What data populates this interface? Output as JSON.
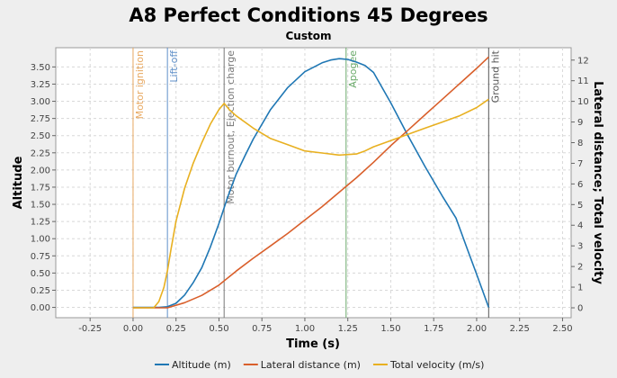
{
  "chart_data": {
    "type": "line",
    "title": "A8 Perfect Conditions 45 Degrees",
    "subtitle": "Custom",
    "xlabel": "Time (s)",
    "ylabel": "Altitude",
    "y2label": "Lateral distance; Total velocity",
    "xlim": [
      -0.45,
      2.55
    ],
    "ylim": [
      -0.15,
      3.78
    ],
    "y2lim": [
      -0.48,
      12.6
    ],
    "xticks": [
      "-0.25",
      "0.00",
      "0.25",
      "0.50",
      "0.75",
      "1.00",
      "1.25",
      "1.50",
      "1.75",
      "2.00",
      "2.25",
      "2.50"
    ],
    "yticks": [
      "0.00",
      "0.25",
      "0.50",
      "0.75",
      "1.00",
      "1.25",
      "1.50",
      "1.75",
      "2.00",
      "2.25",
      "2.50",
      "2.75",
      "3.00",
      "3.25",
      "3.50"
    ],
    "y2ticks": [
      "0",
      "1",
      "2",
      "3",
      "4",
      "5",
      "6",
      "7",
      "8",
      "9",
      "10",
      "11",
      "12"
    ],
    "grid": true,
    "legend_position": "bottom",
    "events": [
      {
        "label": "Motor ignition",
        "x": 0.0,
        "color": "#e8a860"
      },
      {
        "label": "Lift-off",
        "x": 0.2,
        "color": "#5f8fc8"
      },
      {
        "label": "Motor burnout, Ejection charge",
        "x": 0.53,
        "color": "#777777"
      },
      {
        "label": "Apogee",
        "x": 1.24,
        "color": "#6aaa6a"
      },
      {
        "label": "Ground hit",
        "x": 2.07,
        "color": "#555555"
      }
    ],
    "series": [
      {
        "name": "Altitude (m)",
        "axis": "left",
        "color": "#1f77b4",
        "x": [
          0,
          0.15,
          0.2,
          0.25,
          0.3,
          0.35,
          0.4,
          0.45,
          0.5,
          0.53,
          0.55,
          0.6,
          0.65,
          0.7,
          0.8,
          0.9,
          1.0,
          1.1,
          1.15,
          1.2,
          1.25,
          1.3,
          1.35,
          1.4,
          1.5,
          1.6,
          1.7,
          1.8,
          1.88,
          1.95,
          2.0,
          2.07
        ],
        "y": [
          0,
          0,
          0.01,
          0.06,
          0.18,
          0.36,
          0.58,
          0.88,
          1.22,
          1.45,
          1.6,
          1.94,
          2.2,
          2.45,
          2.88,
          3.2,
          3.43,
          3.56,
          3.6,
          3.62,
          3.61,
          3.57,
          3.52,
          3.42,
          2.98,
          2.5,
          2.05,
          1.62,
          1.3,
          0.82,
          0.48,
          0.0
        ]
      },
      {
        "name": "Lateral distance (m)",
        "axis": "right",
        "color": "#d95f2b",
        "x": [
          0,
          0.2,
          0.3,
          0.4,
          0.5,
          0.6,
          0.7,
          0.8,
          0.9,
          1.0,
          1.1,
          1.2,
          1.3,
          1.4,
          1.5,
          1.6,
          1.7,
          1.8,
          1.9,
          2.0,
          2.07
        ],
        "y": [
          0,
          0,
          0.25,
          0.6,
          1.1,
          1.78,
          2.4,
          3.0,
          3.6,
          4.25,
          4.9,
          5.6,
          6.3,
          7.05,
          7.85,
          8.6,
          9.35,
          10.1,
          10.85,
          11.6,
          12.15
        ]
      },
      {
        "name": "Total velocity (m/s)",
        "axis": "right",
        "color": "#e8b020",
        "x": [
          0,
          0.12,
          0.15,
          0.18,
          0.2,
          0.22,
          0.25,
          0.3,
          0.35,
          0.4,
          0.45,
          0.5,
          0.53,
          0.56,
          0.6,
          0.7,
          0.8,
          0.9,
          1.0,
          1.1,
          1.2,
          1.3,
          1.35,
          1.4,
          1.5,
          1.6,
          1.7,
          1.8,
          1.9,
          2.0,
          2.07
        ],
        "y": [
          0,
          0,
          0.3,
          1.0,
          1.8,
          2.8,
          4.2,
          5.8,
          7.0,
          8.0,
          8.9,
          9.6,
          9.9,
          9.6,
          9.3,
          8.7,
          8.2,
          7.9,
          7.6,
          7.5,
          7.4,
          7.45,
          7.6,
          7.8,
          8.1,
          8.4,
          8.7,
          9.0,
          9.3,
          9.7,
          10.1
        ]
      }
    ]
  }
}
